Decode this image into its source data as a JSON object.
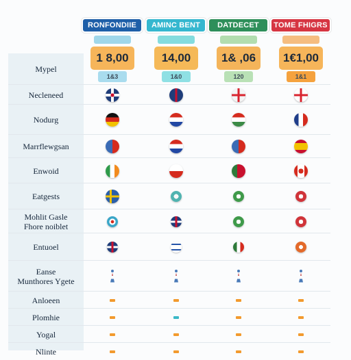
{
  "plans": [
    {
      "name": "RONFONDIIE",
      "price": "1 8,00",
      "sub": "1&3",
      "header_color": "#1e5fa8",
      "strip_color": "#8fd0e6",
      "price_color": "#f6b55a",
      "sub_color": "#a9dcee"
    },
    {
      "name": "AMINC BENT",
      "price": "14,00",
      "sub": "1&0",
      "header_color": "#35b7cf",
      "strip_color": "#6fd6d8",
      "price_color": "#f5b958",
      "sub_color": "#8fe0e4"
    },
    {
      "name": "DATDECET",
      "price": "1& ,06",
      "sub": "120",
      "header_color": "#2e8f5a",
      "strip_color": "#a5d7a1",
      "price_color": "#f4b45a",
      "sub_color": "#b9e1b6"
    },
    {
      "name": "TOME FHIGRS",
      "price": "1€1,00",
      "sub": "1&1",
      "header_color": "#d63542",
      "strip_color": "#f3b26a",
      "price_color": "#f6b55a",
      "sub_color": "#f5a23e"
    }
  ],
  "rows": [
    {
      "label": "Mypel",
      "flags": [
        "none",
        "none",
        "none",
        "none"
      ]
    },
    {
      "label": "Necleneed",
      "flags": [
        "uk",
        "uk-red",
        "uk-white",
        "england"
      ]
    },
    {
      "label": "Nodurg",
      "flags": [
        "germany",
        "croatia",
        "hungary",
        "france"
      ]
    },
    {
      "label": "Marrflewgsan",
      "flags": [
        "italy-red",
        "paraguay",
        "italy-red",
        "spain"
      ]
    },
    {
      "label": "Enwoid",
      "flags": [
        "ireland",
        "czech",
        "portugal",
        "canada"
      ]
    },
    {
      "label": "Eatgests",
      "flags": [
        "sweden",
        "teal-seal",
        "green-seal",
        "red-seal"
      ]
    },
    {
      "label": "Mohlit Gasle\nFhore noiblet",
      "flags": [
        "target",
        "uk-small",
        "green-seal",
        "red-seal"
      ]
    },
    {
      "label": "Entuoel",
      "flags": [
        "uk-small",
        "israel",
        "england-red",
        "orange-seal"
      ]
    },
    {
      "label": "Eanse\nMunthores Ygete",
      "flags": [
        "figure",
        "figure",
        "figure",
        "figure"
      ]
    },
    {
      "label": "Anloeen",
      "flags": [
        "dash-orange",
        "dash-orange",
        "dash-orange",
        "dash-orange"
      ]
    },
    {
      "label": "Plomhie",
      "flags": [
        "dash-orange",
        "dash-teal",
        "dash-orange",
        "dash-orange"
      ]
    },
    {
      "label": "Yogal",
      "flags": [
        "dash-orange",
        "dash-orange",
        "dash-orange",
        "dash-orange"
      ]
    },
    {
      "label": "Nlinte",
      "flags": [
        "dash-orange",
        "dash-orange",
        "dash-orange",
        "dash-orange"
      ]
    }
  ]
}
